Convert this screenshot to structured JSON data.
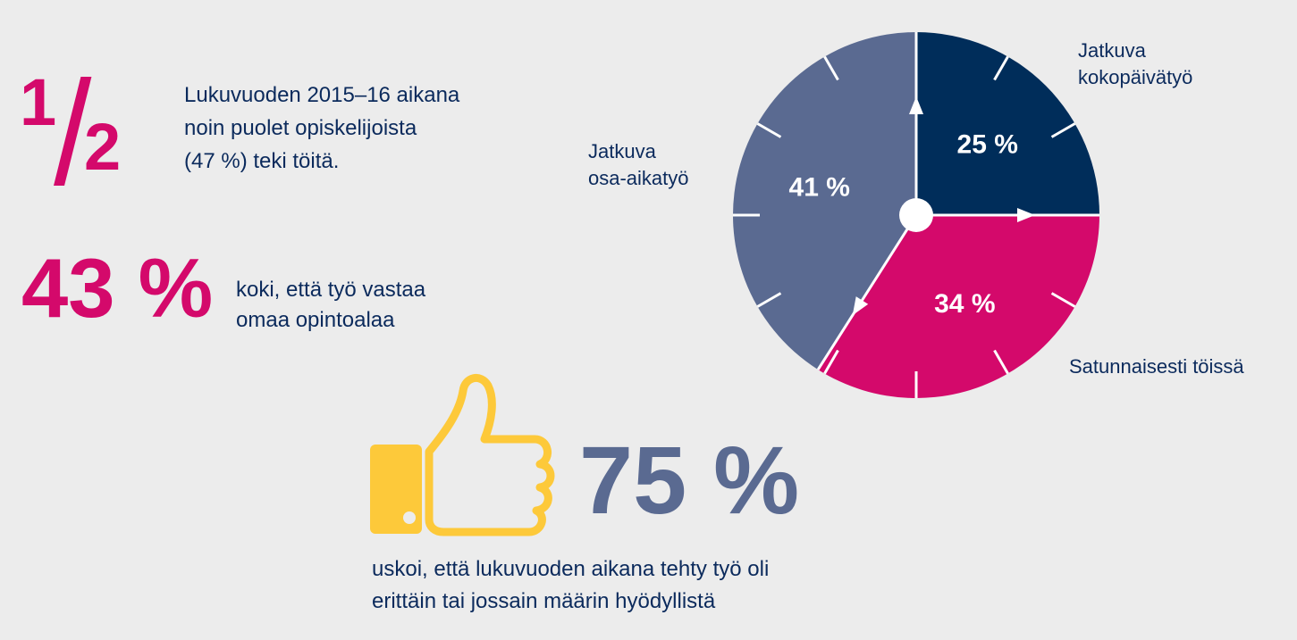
{
  "stat_half": {
    "numerator": "1",
    "denominator": "2",
    "lines": [
      "Lukuvuoden 2015–16 aikana",
      "noin puolet opiskelijoista",
      "(47 %) teki töitä."
    ]
  },
  "stat_field": {
    "value": "43 %",
    "lines": [
      "koki, että työ vastaa",
      "omaa opintoalaa"
    ]
  },
  "stat_useful": {
    "value": "75 %",
    "icon": "thumbs-up-icon",
    "lines": [
      "uskoi, että lukuvuoden aikana tehty työ oli",
      "erittäin tai jossain määrin hyödyllistä"
    ]
  },
  "colors": {
    "background": "#ececec",
    "accent_pink": "#d4096b",
    "navy": "#002d5a",
    "slate": "#5a6a91",
    "text_navy": "#0b2a5c",
    "thumb_yellow": "#fdc93a"
  },
  "chart_data": {
    "type": "pie",
    "title": "",
    "slices": [
      {
        "label_lines": [
          "Jatkuva",
          "kokopäivätyö"
        ],
        "value": 25,
        "value_label": "25 %",
        "color": "#002d5a"
      },
      {
        "label_lines": [
          "Satunnaisesti töissä"
        ],
        "value": 34,
        "value_label": "34 %",
        "color": "#d4096b"
      },
      {
        "label_lines": [
          "Jatkuva",
          "osa-aikatyö"
        ],
        "value": 41,
        "value_label": "41 %",
        "color": "#5a6a91"
      }
    ],
    "start_angle": "12 o'clock",
    "direction": "clockwise",
    "tick_marks": 12
  }
}
